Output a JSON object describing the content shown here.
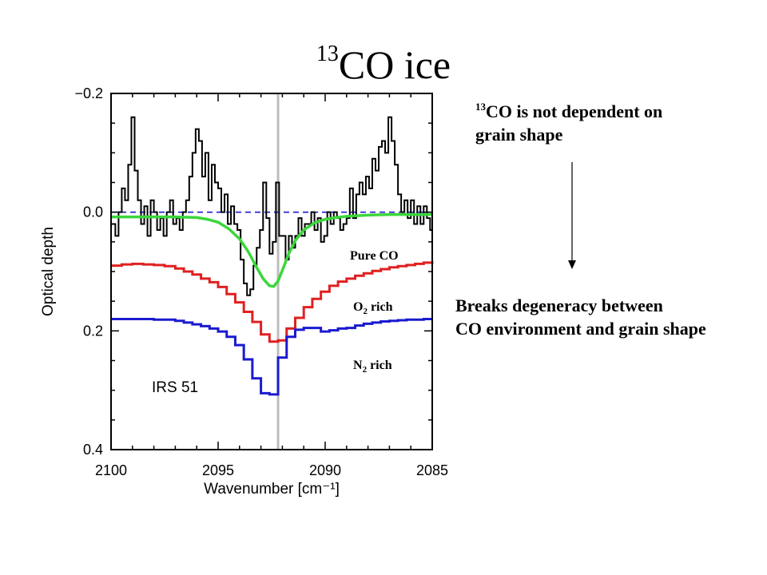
{
  "slide": {
    "title_sup": "13",
    "title_main": "CO ice",
    "note1_sup": "13",
    "note1_line1": "CO is not dependent on",
    "note1_line2": "grain shape",
    "note2_line1": "Breaks degeneracy between",
    "note2_line2": "CO environment and grain shape"
  },
  "chart_data": {
    "type": "line",
    "xlabel": "Wavenumber [cm⁻¹]",
    "ylabel": "Optical depth",
    "xlim": [
      2100,
      2085
    ],
    "ylim": [
      -0.2,
      0.4
    ],
    "y_inverted": true,
    "xticks": [
      2100,
      2095,
      2090,
      2085
    ],
    "xtick_labels": [
      "2100",
      "2095",
      "2090",
      "2085"
    ],
    "yticks": [
      -0.2,
      0.0,
      0.2,
      0.4
    ],
    "ytick_labels": [
      "−0.2",
      "0.0",
      "0.2",
      "0.4"
    ],
    "grid": false,
    "annotation": "IRS 51",
    "reference_line_x": 2092.2,
    "zero_line_y": 0.0,
    "curve_labels": [
      {
        "label": "Pure CO",
        "color": "#3bd63b"
      },
      {
        "label_main": "O",
        "label_sub": "2",
        "label_rest": " rich",
        "color": "#e02020"
      },
      {
        "label_main": "N",
        "label_sub": "2",
        "label_rest": " rich",
        "color": "#1a1ad0"
      }
    ],
    "series": [
      {
        "color": "#000000",
        "x": [
          2100.0,
          2099.8,
          2099.65,
          2099.5,
          2099.35,
          2099.2,
          2099.05,
          2098.9,
          2098.75,
          2098.6,
          2098.45,
          2098.3,
          2098.15,
          2098.0,
          2097.85,
          2097.7,
          2097.55,
          2097.4,
          2097.25,
          2097.1,
          2096.95,
          2096.8,
          2096.65,
          2096.5,
          2096.35,
          2096.2,
          2096.05,
          2095.9,
          2095.75,
          2095.6,
          2095.45,
          2095.3,
          2095.15,
          2095.0,
          2094.85,
          2094.7,
          2094.55,
          2094.4,
          2094.25,
          2094.1,
          2093.95,
          2093.8,
          2093.65,
          2093.5,
          2093.35,
          2093.2,
          2093.05,
          2092.9,
          2092.75,
          2092.6,
          2092.45,
          2092.3,
          2092.15,
          2092.0,
          2091.85,
          2091.7,
          2091.55,
          2091.4,
          2091.25,
          2091.1,
          2090.95,
          2090.8,
          2090.65,
          2090.5,
          2090.35,
          2090.2,
          2090.05,
          2089.9,
          2089.75,
          2089.6,
          2089.45,
          2089.3,
          2089.15,
          2089.0,
          2088.85,
          2088.7,
          2088.55,
          2088.4,
          2088.25,
          2088.1,
          2087.95,
          2087.8,
          2087.65,
          2087.5,
          2087.35,
          2087.2,
          2087.05,
          2086.9,
          2086.75,
          2086.6,
          2086.45,
          2086.3,
          2086.15,
          2086.0,
          2085.85,
          2085.7,
          2085.55,
          2085.4,
          2085.25,
          2085.1,
          2085.0
        ],
        "y": [
          0.02,
          0.04,
          0.0,
          -0.04,
          -0.02,
          -0.08,
          -0.16,
          -0.07,
          -0.02,
          0.02,
          -0.01,
          0.04,
          -0.02,
          0.0,
          0.03,
          0.01,
          0.04,
          0.0,
          -0.02,
          0.02,
          0.01,
          0.03,
          0.0,
          -0.02,
          -0.06,
          -0.1,
          -0.14,
          -0.12,
          -0.06,
          -0.1,
          -0.02,
          -0.08,
          -0.05,
          -0.04,
          0.0,
          -0.03,
          0.02,
          -0.01,
          0.02,
          0.03,
          0.08,
          0.12,
          0.14,
          0.13,
          0.09,
          0.06,
          0.03,
          -0.05,
          0.01,
          0.07,
          0.05,
          -0.05,
          0.04,
          0.04,
          0.08,
          0.04,
          0.06,
          0.04,
          0.01,
          0.04,
          0.02,
          0.02,
          0.0,
          0.03,
          0.01,
          0.05,
          0.04,
          0.0,
          0.02,
          0.0,
          0.01,
          0.03,
          0.02,
          0.01,
          -0.04,
          0.01,
          -0.03,
          -0.05,
          -0.03,
          -0.06,
          -0.04,
          -0.09,
          -0.07,
          -0.11,
          -0.12,
          -0.1,
          -0.16,
          -0.12,
          -0.08,
          -0.03,
          0.0,
          -0.02,
          0.01,
          -0.02,
          0.02,
          -0.01,
          0.02,
          -0.01,
          0.01,
          0.03,
          0.0
        ]
      },
      {
        "color": "#3bd63b",
        "x": [
          2100.0,
          2099.0,
          2098.0,
          2097.0,
          2096.0,
          2095.5,
          2095.0,
          2094.5,
          2094.0,
          2093.6,
          2093.2,
          2092.9,
          2092.6,
          2092.4,
          2092.2,
          2092.0,
          2091.7,
          2091.4,
          2091.0,
          2090.5,
          2090.0,
          2089.5,
          2089.0,
          2088.0,
          2087.0,
          2086.0,
          2085.0
        ],
        "y": [
          0.008,
          0.008,
          0.008,
          0.008,
          0.009,
          0.012,
          0.017,
          0.028,
          0.045,
          0.066,
          0.093,
          0.112,
          0.124,
          0.125,
          0.116,
          0.098,
          0.07,
          0.048,
          0.03,
          0.018,
          0.012,
          0.009,
          0.007,
          0.005,
          0.004,
          0.004,
          0.004
        ]
      },
      {
        "color": "#e02020",
        "x": [
          2100.0,
          2099.5,
          2099.0,
          2098.5,
          2098.0,
          2097.5,
          2097.0,
          2096.6,
          2096.2,
          2095.8,
          2095.4,
          2095.0,
          2094.6,
          2094.2,
          2093.8,
          2093.4,
          2093.0,
          2092.6,
          2092.2,
          2091.8,
          2091.4,
          2091.0,
          2090.6,
          2090.2,
          2089.8,
          2089.4,
          2089.0,
          2088.6,
          2088.2,
          2087.8,
          2087.4,
          2087.0,
          2086.6,
          2086.2,
          2085.8,
          2085.4,
          2085.0
        ],
        "y": [
          0.09,
          0.088,
          0.087,
          0.088,
          0.089,
          0.091,
          0.095,
          0.1,
          0.105,
          0.112,
          0.118,
          0.126,
          0.138,
          0.152,
          0.168,
          0.185,
          0.206,
          0.218,
          0.216,
          0.196,
          0.178,
          0.16,
          0.146,
          0.134,
          0.124,
          0.117,
          0.112,
          0.107,
          0.103,
          0.099,
          0.096,
          0.093,
          0.091,
          0.089,
          0.087,
          0.085,
          0.083
        ]
      },
      {
        "color": "#1a1ad0",
        "x": [
          2100.0,
          2099.0,
          2098.0,
          2097.0,
          2096.6,
          2096.2,
          2095.8,
          2095.4,
          2095.0,
          2094.6,
          2094.2,
          2093.8,
          2093.4,
          2093.0,
          2092.6,
          2092.2,
          2091.8,
          2091.4,
          2091.0,
          2090.6,
          2090.2,
          2089.8,
          2089.4,
          2089.0,
          2088.6,
          2088.2,
          2087.8,
          2087.4,
          2087.0,
          2086.6,
          2086.2,
          2085.8,
          2085.4,
          2085.0
        ],
        "y": [
          0.18,
          0.18,
          0.181,
          0.183,
          0.186,
          0.189,
          0.192,
          0.196,
          0.201,
          0.21,
          0.224,
          0.248,
          0.28,
          0.305,
          0.307,
          0.245,
          0.21,
          0.198,
          0.195,
          0.195,
          0.201,
          0.199,
          0.196,
          0.195,
          0.191,
          0.188,
          0.186,
          0.184,
          0.183,
          0.182,
          0.181,
          0.181,
          0.18,
          0.18
        ]
      }
    ]
  }
}
